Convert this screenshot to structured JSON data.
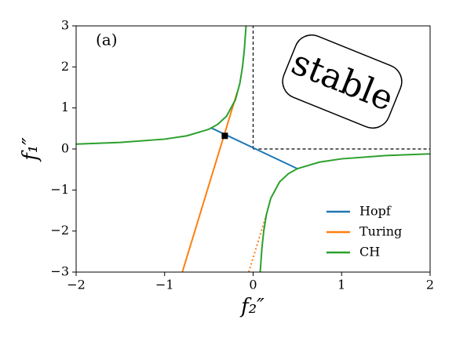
{
  "chart_data": {
    "type": "line",
    "panel_label": "(a)",
    "annotation": "stable",
    "x_label": "f₂″",
    "y_label": "f₁″",
    "xlim": [
      -2,
      2
    ],
    "ylim": [
      -3,
      3
    ],
    "xticks": [
      {
        "value": -2,
        "label": "−2"
      },
      {
        "value": -1,
        "label": "−1"
      },
      0,
      1,
      2
    ],
    "yticks": [
      {
        "value": -3,
        "label": "−3"
      },
      {
        "value": -2,
        "label": "−2"
      },
      {
        "value": -1,
        "label": "−1"
      },
      0,
      1,
      2,
      3
    ],
    "legend": "lower right",
    "series": [
      {
        "name": "Hopf",
        "color": "#1f77b4",
        "x": [
          -0.48,
          0.5
        ],
        "values": [
          0.52,
          -0.48
        ]
      },
      {
        "name": "Turing",
        "color": "#ff7f0e",
        "x": [
          -0.8,
          -0.18
        ],
        "values": [
          -3,
          1.38
        ]
      },
      {
        "name": "CH",
        "color": "#2ca02c",
        "x": [
          -2,
          -1.5,
          -1,
          -0.75,
          -0.5,
          -0.4,
          -0.3,
          -0.2,
          -0.15,
          -0.12,
          -0.1,
          -0.08,
          null,
          0.08,
          0.1,
          0.12,
          0.15,
          0.2,
          0.3,
          0.4,
          0.5,
          0.75,
          1,
          1.5,
          2
        ],
        "values": [
          0.12,
          0.16,
          0.24,
          0.32,
          0.48,
          0.6,
          0.8,
          1.2,
          1.6,
          2,
          2.4,
          3,
          null,
          -3,
          -2.4,
          -2,
          -1.6,
          -1.2,
          -0.8,
          -0.6,
          -0.48,
          -0.32,
          -0.24,
          -0.16,
          -0.12
        ]
      }
    ],
    "dotted_line": {
      "color": "#ff7f0e",
      "x": [
        -0.05,
        0.16
      ],
      "values": [
        -3,
        -1.53
      ]
    },
    "dashed_lines": [
      {
        "x": [
          0,
          0
        ],
        "values": [
          0,
          3
        ]
      },
      {
        "x": [
          0,
          2
        ],
        "values": [
          0,
          0
        ]
      }
    ],
    "point": {
      "x": -0.32,
      "y": 0.32
    }
  }
}
